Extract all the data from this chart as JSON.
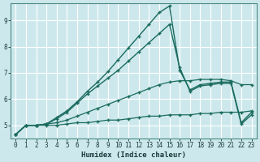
{
  "xlabel": "Humidex (Indice chaleur)",
  "bg_color": "#cde8ed",
  "grid_color": "#b8d8de",
  "line_color": "#1a6b5e",
  "xlim": [
    -0.5,
    23.5
  ],
  "ylim": [
    4.5,
    9.65
  ],
  "xticks": [
    0,
    1,
    2,
    3,
    4,
    5,
    6,
    7,
    8,
    9,
    10,
    11,
    12,
    13,
    14,
    15,
    16,
    17,
    18,
    19,
    20,
    21,
    22,
    23
  ],
  "yticks": [
    5,
    6,
    7,
    8,
    9
  ],
  "line1_x": [
    0,
    1,
    2,
    3,
    4,
    5,
    6,
    7,
    8,
    9,
    10,
    11,
    12,
    13,
    14,
    15,
    16,
    17,
    18,
    19,
    20,
    21,
    22,
    23
  ],
  "line1_y": [
    4.65,
    5.0,
    5.0,
    5.0,
    5.0,
    5.05,
    5.1,
    5.1,
    5.15,
    5.2,
    5.2,
    5.25,
    5.3,
    5.35,
    5.35,
    5.4,
    5.4,
    5.4,
    5.45,
    5.45,
    5.5,
    5.5,
    5.5,
    5.55
  ],
  "line2_x": [
    0,
    1,
    2,
    3,
    4,
    5,
    6,
    7,
    8,
    9,
    10,
    11,
    12,
    13,
    14,
    15,
    16,
    17,
    18,
    19,
    20,
    21,
    22,
    23
  ],
  "line2_y": [
    4.65,
    5.0,
    5.0,
    5.05,
    5.1,
    5.2,
    5.35,
    5.5,
    5.65,
    5.8,
    5.95,
    6.1,
    6.25,
    6.4,
    6.55,
    6.65,
    6.7,
    6.7,
    6.75,
    6.75,
    6.75,
    6.7,
    6.55,
    6.55
  ],
  "line3_x": [
    0,
    1,
    2,
    3,
    4,
    5,
    6,
    7,
    8,
    9,
    10,
    11,
    12,
    13,
    14,
    15,
    16,
    17,
    18,
    19,
    20,
    21,
    22,
    23
  ],
  "line3_y": [
    4.65,
    5.0,
    5.0,
    5.05,
    5.25,
    5.5,
    5.85,
    6.2,
    6.5,
    6.8,
    7.1,
    7.45,
    7.8,
    8.15,
    8.5,
    8.85,
    7.2,
    6.3,
    6.5,
    6.55,
    6.6,
    6.6,
    5.05,
    5.4
  ],
  "line4_x": [
    0,
    1,
    2,
    3,
    4,
    5,
    6,
    7,
    8,
    9,
    10,
    11,
    12,
    13,
    14,
    15,
    16,
    17,
    18,
    19,
    20,
    21,
    22,
    23
  ],
  "line4_y": [
    4.65,
    5.0,
    5.0,
    5.05,
    5.3,
    5.55,
    5.9,
    6.3,
    6.65,
    7.05,
    7.5,
    7.95,
    8.4,
    8.85,
    9.3,
    9.55,
    7.1,
    6.35,
    6.55,
    6.6,
    6.65,
    6.65,
    5.1,
    5.5
  ]
}
